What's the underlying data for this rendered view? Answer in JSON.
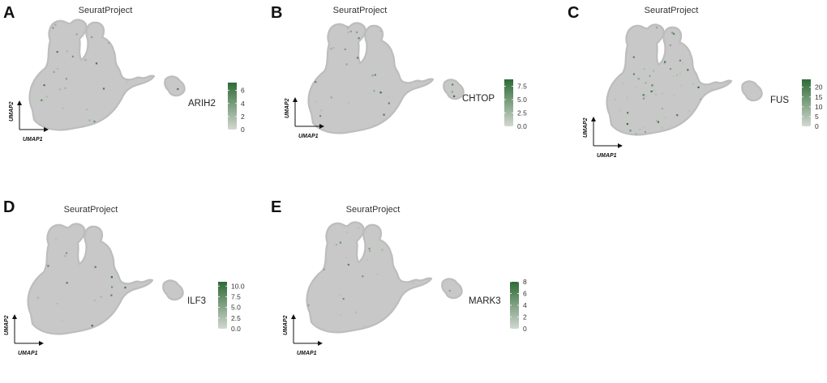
{
  "figure": {
    "shared": {
      "plot_title": "SeuratProject",
      "x_axis_label": "UMAP1",
      "y_axis_label": "UMAP2"
    }
  },
  "colors": {
    "cell_background": "#c8c8c8",
    "cell_border": "#bdbdbd",
    "low": "#d2d8d0",
    "high": "#2e6b36"
  },
  "chart_data": [
    {
      "type": "scatter",
      "panel": "A",
      "title": "SeuratProject",
      "xlabel": "UMAP1",
      "ylabel": "UMAP2",
      "feature": "ARIH2",
      "legend_placement": "right",
      "scale": [
        0,
        7.2
      ],
      "ticks": [
        "0",
        "2",
        "4",
        "6"
      ],
      "tick_values": [
        0,
        2,
        4,
        6
      ],
      "expressing_fraction": 0.05,
      "seed": 11
    },
    {
      "type": "scatter",
      "panel": "B",
      "title": "SeuratProject",
      "xlabel": "UMAP1",
      "ylabel": "UMAP2",
      "feature": "CHTOP",
      "legend_placement": "right",
      "scale": [
        0,
        8.8
      ],
      "ticks": [
        "0.0",
        "2.5",
        "5.0",
        "7.5"
      ],
      "tick_values": [
        0,
        2.5,
        5.0,
        7.5
      ],
      "expressing_fraction": 0.05,
      "seed": 23
    },
    {
      "type": "scatter",
      "panel": "C",
      "title": "SeuratProject",
      "xlabel": "UMAP1",
      "ylabel": "UMAP2",
      "feature": "FUS",
      "legend_placement": "right",
      "scale": [
        0,
        24
      ],
      "ticks": [
        "0",
        "5",
        "10",
        "15",
        "20"
      ],
      "tick_values": [
        0,
        5,
        10,
        15,
        20
      ],
      "expressing_fraction": 0.11,
      "seed": 37
    },
    {
      "type": "scatter",
      "panel": "D",
      "title": "SeuratProject",
      "xlabel": "UMAP1",
      "ylabel": "UMAP2",
      "feature": "ILF3",
      "legend_placement": "right",
      "scale": [
        0,
        11
      ],
      "ticks": [
        "0.0",
        "2.5",
        "5.0",
        "7.5",
        "10.0"
      ],
      "tick_values": [
        0,
        2.5,
        5.0,
        7.5,
        10.0
      ],
      "expressing_fraction": 0.05,
      "seed": 41
    },
    {
      "type": "scatter",
      "panel": "E",
      "title": "SeuratProject",
      "xlabel": "UMAP1",
      "ylabel": "UMAP2",
      "feature": "MARK3",
      "legend_placement": "right",
      "scale": [
        0,
        8
      ],
      "ticks": [
        "0",
        "2",
        "4",
        "6",
        "8"
      ],
      "tick_values": [
        0,
        2,
        4,
        6,
        8
      ],
      "expressing_fraction": 0.05,
      "seed": 53
    }
  ]
}
